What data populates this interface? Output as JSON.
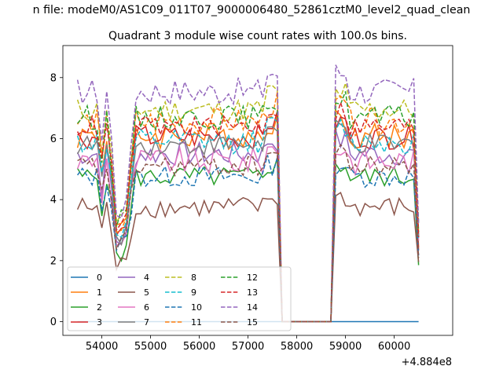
{
  "figure": {
    "suptitle": "n file: modeM0/AS1C09_011T07_9000006480_52861cztM0_level2_quad_clean",
    "title": "Quadrant 3 module wise count rates with 100.0s bins.",
    "offset_label": "+4.884e8"
  },
  "chart_data": {
    "type": "line",
    "title": "Quadrant 3 module wise count rates with 100.0s bins.",
    "xlabel": "",
    "ylabel": "",
    "x_offset": 488400000,
    "xlim": [
      53200,
      61200
    ],
    "ylim": [
      -0.45,
      9.05
    ],
    "xticks": [
      54000,
      55000,
      56000,
      57000,
      58000,
      59000,
      60000
    ],
    "xtick_labels": [
      "54000",
      "55000",
      "56000",
      "57000",
      "58000",
      "59000",
      "60000"
    ],
    "yticks": [
      0,
      2,
      4,
      6,
      8
    ],
    "ytick_labels": [
      "0",
      "2",
      "4",
      "6",
      "8"
    ],
    "grid": false,
    "legend_position": "lower-left",
    "legend_columns": 4,
    "x_data_rows_note_free": true,
    "x_start": 53500,
    "x_step": 100,
    "x_end": 60500,
    "gap_start": 57700,
    "gap_end": 58700,
    "series": [
      {
        "name": "0",
        "color": "#1f77b4",
        "style": "solid",
        "level": 0.0,
        "low_dip": 0.0,
        "amp": 0.0
      },
      {
        "name": "1",
        "color": "#ff7f0e",
        "style": "solid",
        "level": 6.1,
        "low_dip": 3.2,
        "amp": 0.45
      },
      {
        "name": "2",
        "color": "#2ca02c",
        "style": "solid",
        "level": 4.75,
        "low_dip": 2.3,
        "amp": 0.35
      },
      {
        "name": "3",
        "color": "#d62728",
        "style": "solid",
        "level": 6.05,
        "low_dip": 2.9,
        "amp": 0.4
      },
      {
        "name": "4",
        "color": "#9467bd",
        "style": "solid",
        "level": 5.5,
        "low_dip": 2.7,
        "amp": 0.4
      },
      {
        "name": "5",
        "color": "#8c564b",
        "style": "solid",
        "level": 3.75,
        "low_dip": 1.8,
        "amp": 0.35
      },
      {
        "name": "6",
        "color": "#e377c2",
        "style": "solid",
        "level": 5.25,
        "low_dip": 2.6,
        "amp": 0.45
      },
      {
        "name": "7",
        "color": "#7f7f7f",
        "style": "solid",
        "level": 5.8,
        "low_dip": 2.9,
        "amp": 0.35
      },
      {
        "name": "8",
        "color": "#bcbd22",
        "style": "dashed",
        "level": 6.95,
        "low_dip": 3.4,
        "amp": 0.4
      },
      {
        "name": "9",
        "color": "#17becf",
        "style": "dashed",
        "level": 5.9,
        "low_dip": 3.0,
        "amp": 0.4
      },
      {
        "name": "10",
        "color": "#1f77b4",
        "style": "dashed",
        "level": 4.75,
        "low_dip": 2.5,
        "amp": 0.35
      },
      {
        "name": "11",
        "color": "#ff7f0e",
        "style": "dashed",
        "level": 6.55,
        "low_dip": 3.1,
        "amp": 0.45
      },
      {
        "name": "12",
        "color": "#2ca02c",
        "style": "dashed",
        "level": 6.7,
        "low_dip": 3.3,
        "amp": 0.4
      },
      {
        "name": "13",
        "color": "#d62728",
        "style": "dashed",
        "level": 6.4,
        "low_dip": 3.2,
        "amp": 0.35
      },
      {
        "name": "14",
        "color": "#9467bd",
        "style": "dashed",
        "level": 7.55,
        "low_dip": 3.7,
        "amp": 0.45
      },
      {
        "name": "15",
        "color": "#8c564b",
        "style": "dashed",
        "level": 5.1,
        "low_dip": 2.6,
        "amp": 0.35
      }
    ]
  }
}
